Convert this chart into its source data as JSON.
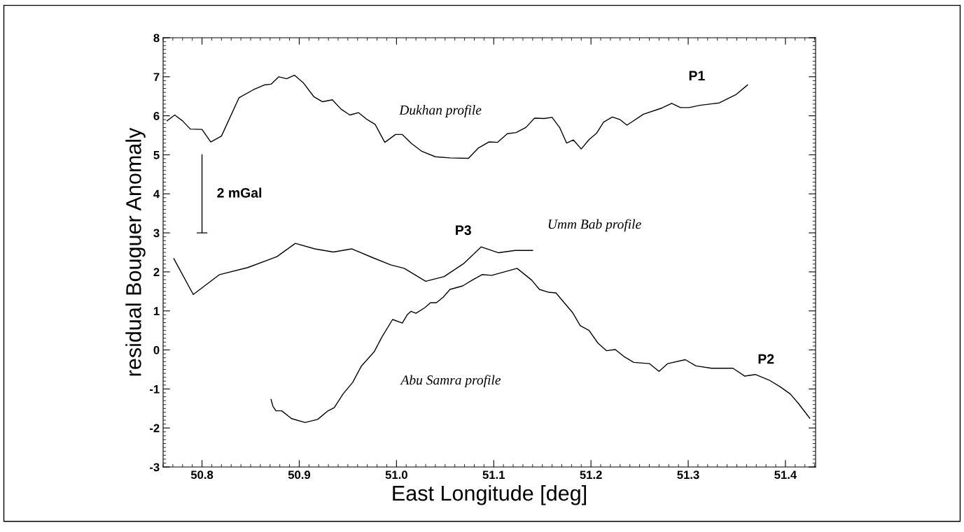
{
  "chart_data": {
    "type": "line",
    "xlabel": "East Longitude [deg]",
    "ylabel": "residual Bouguer Anomaly",
    "xlim": [
      50.76,
      51.431
    ],
    "ylim": [
      -3,
      8
    ],
    "xticks": [
      50.8,
      50.9,
      {
        "value": 51.0,
        "label": "51.0"
      },
      51.1,
      51.2,
      51.3,
      51.4
    ],
    "yticks": [
      -3,
      -2,
      -1,
      0,
      1,
      2,
      3,
      4,
      5,
      6,
      7,
      8
    ],
    "grid": false,
    "legend": false,
    "marker": "none",
    "line_style": "solid",
    "series": [
      {
        "color": "#000000",
        "x": [
          50.764,
          50.772,
          50.78,
          50.788,
          50.8,
          50.809,
          50.82,
          50.838,
          50.853,
          50.864,
          50.871,
          50.879,
          50.887,
          50.895,
          50.904,
          50.915,
          50.924,
          50.934,
          50.943,
          50.952,
          50.961,
          50.97,
          50.978,
          50.988,
          50.999,
          51.006,
          51.015,
          51.026,
          51.04,
          51.055,
          51.074,
          51.084,
          51.095,
          51.104,
          51.114,
          51.123,
          51.133,
          51.142,
          51.152,
          51.16,
          51.168,
          51.175,
          51.182,
          51.19,
          51.198,
          51.206,
          51.213,
          51.222,
          51.23,
          51.237,
          51.254,
          51.273,
          51.283,
          51.292,
          51.301,
          51.312,
          51.332,
          51.349,
          51.361
        ],
        "values": [
          5.87,
          6.02,
          5.87,
          5.66,
          5.65,
          5.33,
          5.48,
          6.46,
          6.67,
          6.79,
          6.81,
          7.0,
          6.95,
          7.04,
          6.85,
          6.49,
          6.36,
          6.41,
          6.17,
          6.02,
          6.08,
          5.9,
          5.78,
          5.32,
          5.52,
          5.52,
          5.3,
          5.09,
          4.95,
          4.92,
          4.91,
          5.17,
          5.33,
          5.32,
          5.54,
          5.57,
          5.7,
          5.94,
          5.93,
          5.96,
          5.69,
          5.3,
          5.38,
          5.15,
          5.39,
          5.56,
          5.84,
          5.97,
          5.9,
          5.76,
          6.04,
          6.2,
          6.32,
          6.21,
          6.21,
          6.27,
          6.33,
          6.54,
          6.79
        ]
      },
      {
        "color": "#000000",
        "x": [
          50.771,
          50.791,
          50.818,
          50.847,
          50.877,
          50.896,
          50.916,
          50.935,
          50.954,
          50.975,
          50.994,
          51.008,
          51.03,
          51.049,
          51.069,
          51.087,
          51.105,
          51.122,
          51.14
        ],
        "values": [
          2.34,
          1.42,
          1.93,
          2.11,
          2.39,
          2.73,
          2.59,
          2.51,
          2.59,
          2.37,
          2.18,
          2.09,
          1.76,
          1.88,
          2.21,
          2.64,
          2.49,
          2.55,
          2.55
        ]
      },
      {
        "color": "#000000",
        "x": [
          50.871,
          50.873,
          50.876,
          50.882,
          50.892,
          50.906,
          50.919,
          50.929,
          50.936,
          50.945,
          50.955,
          50.964,
          50.977,
          50.985,
          50.996,
          51.006,
          51.011,
          51.015,
          51.02,
          51.029,
          51.035,
          51.041,
          51.048,
          51.055,
          51.068,
          51.078,
          51.088,
          51.098,
          51.111,
          51.124,
          51.139,
          51.147,
          51.156,
          51.164,
          51.181,
          51.189,
          51.198,
          51.207,
          51.216,
          51.225,
          51.234,
          51.244,
          51.26,
          51.27,
          51.279,
          51.297,
          51.308,
          51.324,
          51.346,
          51.358,
          51.369,
          51.383,
          51.395,
          51.405,
          51.413,
          51.425
        ],
        "values": [
          -1.27,
          -1.45,
          -1.56,
          -1.56,
          -1.76,
          -1.86,
          -1.78,
          -1.57,
          -1.48,
          -1.13,
          -0.83,
          -0.41,
          -0.05,
          0.33,
          0.78,
          0.69,
          0.9,
          0.99,
          0.94,
          1.08,
          1.21,
          1.21,
          1.35,
          1.55,
          1.64,
          1.79,
          1.93,
          1.91,
          2.0,
          2.09,
          1.79,
          1.55,
          1.48,
          1.46,
          0.96,
          0.62,
          0.5,
          0.18,
          -0.02,
          0.01,
          -0.17,
          -0.32,
          -0.35,
          -0.55,
          -0.35,
          -0.25,
          -0.41,
          -0.47,
          -0.47,
          -0.67,
          -0.63,
          -0.77,
          -0.95,
          -1.13,
          -1.36,
          -1.75
        ]
      },
      {
        "color": "#000000",
        "x": [
          50.8,
          50.8,
          50.795,
          50.805
        ],
        "values": [
          5,
          3,
          3,
          3
        ]
      }
    ],
    "annotations": [
      "Dukhan profile",
      "P1",
      "2 mGal",
      "P3",
      "Umm Bab profile",
      "Abu Samra profile",
      "P2"
    ]
  }
}
